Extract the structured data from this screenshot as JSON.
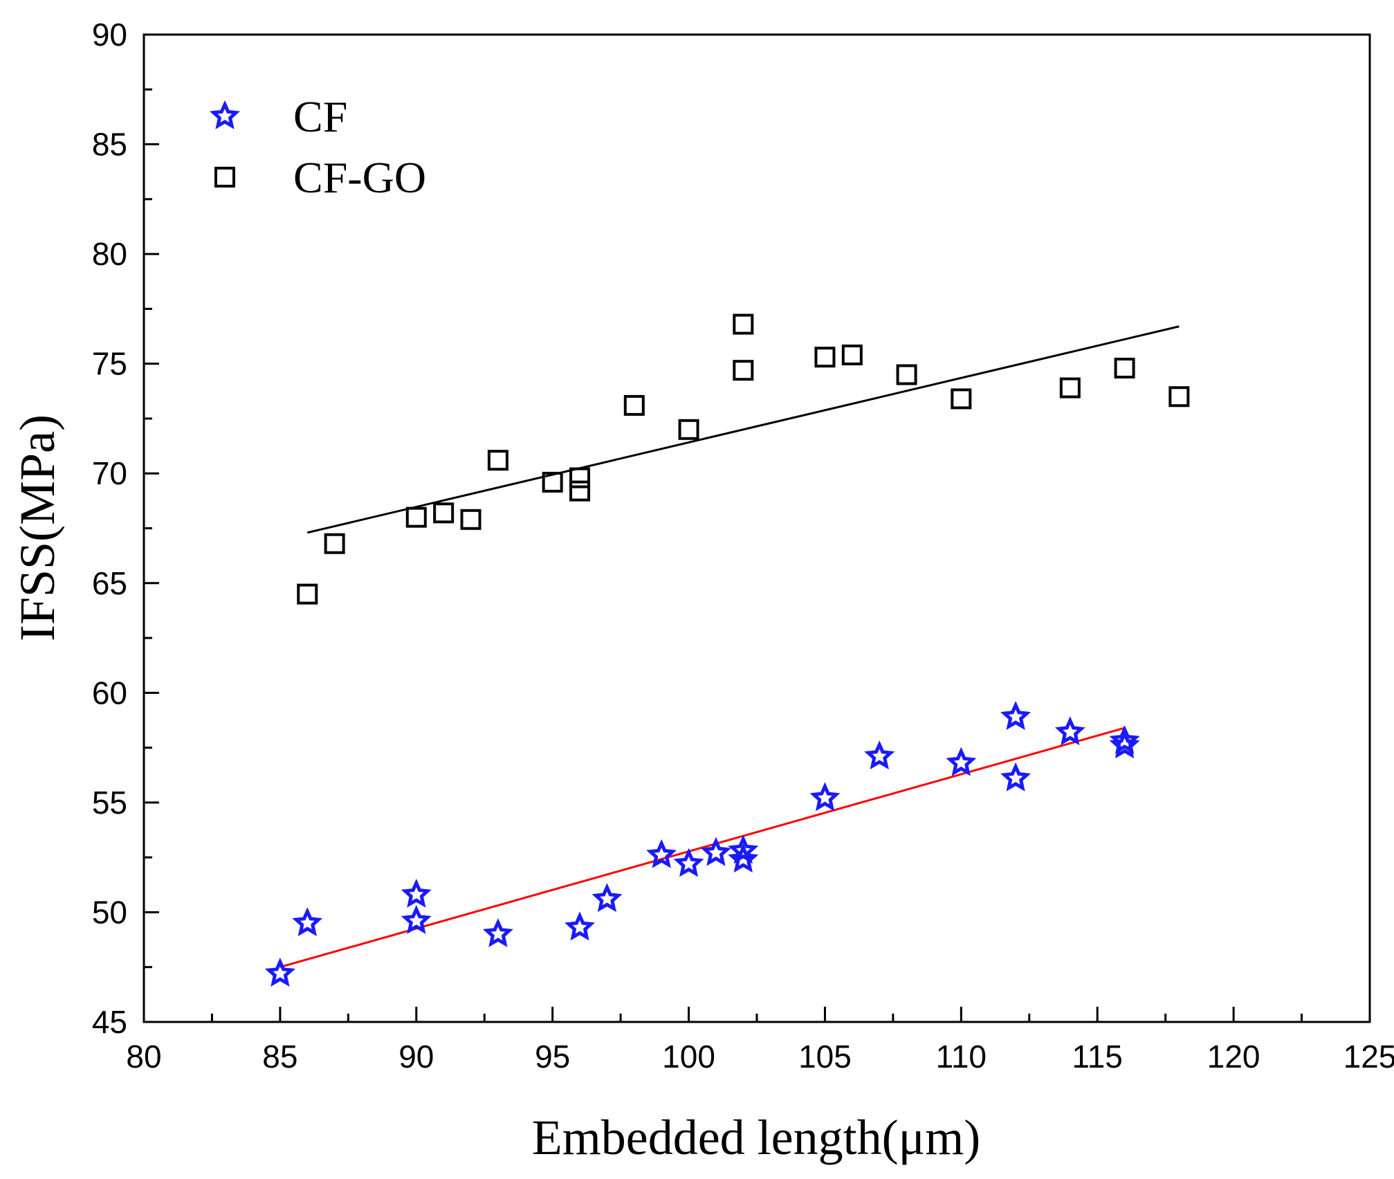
{
  "chart_data": {
    "type": "scatter",
    "xlabel": "Embedded length(μm)",
    "ylabel": "IFSS(MPa)",
    "xlim": [
      80,
      125
    ],
    "ylim": [
      45,
      90
    ],
    "x_ticks": [
      80,
      85,
      90,
      95,
      100,
      105,
      110,
      115,
      120,
      125
    ],
    "y_ticks": [
      45,
      50,
      55,
      60,
      65,
      70,
      75,
      80,
      85,
      90
    ],
    "grid": false,
    "legend_position": "top-left",
    "series": [
      {
        "name": "CF",
        "marker": "star",
        "color": "#1a1aff",
        "points": [
          [
            85,
            47.2
          ],
          [
            86,
            49.5
          ],
          [
            90,
            50.8
          ],
          [
            90,
            49.6
          ],
          [
            93,
            49.0
          ],
          [
            96,
            49.3
          ],
          [
            97,
            50.6
          ],
          [
            99,
            52.6
          ],
          [
            100,
            52.2
          ],
          [
            101,
            52.7
          ],
          [
            102,
            52.4
          ],
          [
            102,
            52.8
          ],
          [
            105,
            55.2
          ],
          [
            107,
            57.1
          ],
          [
            110,
            56.8
          ],
          [
            112,
            58.9
          ],
          [
            112,
            56.1
          ],
          [
            114,
            58.2
          ],
          [
            116,
            57.8
          ],
          [
            116,
            57.6
          ]
        ],
        "fit": {
          "color": "#ff0000",
          "x": [
            85,
            116
          ],
          "y": [
            47.5,
            58.4
          ]
        }
      },
      {
        "name": "CF-GO",
        "marker": "square",
        "color": "#000000",
        "points": [
          [
            86,
            64.5
          ],
          [
            87,
            66.8
          ],
          [
            90,
            68.0
          ],
          [
            91,
            68.2
          ],
          [
            92,
            67.9
          ],
          [
            93,
            70.6
          ],
          [
            95,
            69.6
          ],
          [
            96,
            69.8
          ],
          [
            96,
            69.2
          ],
          [
            98,
            73.1
          ],
          [
            100,
            72.0
          ],
          [
            102,
            76.8
          ],
          [
            102,
            74.7
          ],
          [
            105,
            75.3
          ],
          [
            106,
            75.4
          ],
          [
            108,
            74.5
          ],
          [
            110,
            73.4
          ],
          [
            114,
            73.9
          ],
          [
            116,
            74.8
          ],
          [
            118,
            73.5
          ]
        ],
        "fit": {
          "color": "#000000",
          "x": [
            86,
            118
          ],
          "y": [
            67.3,
            76.7
          ]
        }
      }
    ]
  }
}
